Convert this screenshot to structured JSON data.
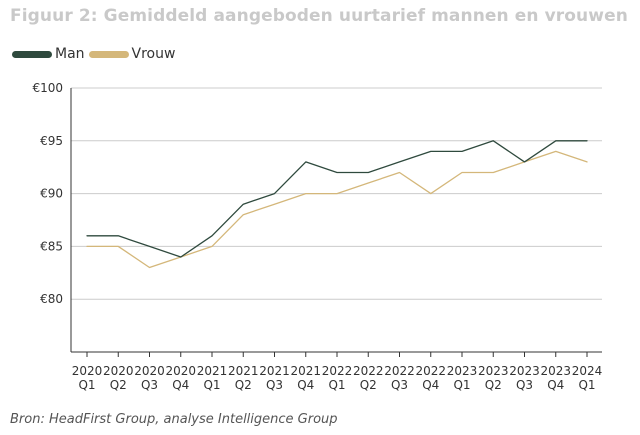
{
  "title": "Figuur 2:  Gemiddeld aangeboden uurtarief mannen en vrouwen",
  "source": "Bron: HeadFirst Group, analyse Intelligence Group",
  "colors": {
    "man": "#2f4a3e",
    "vrouw": "#d4b77a",
    "grid": "#cccccc",
    "axis": "#333333",
    "title": "#c9c9c9"
  },
  "chart_data": {
    "type": "line",
    "title": "Figuur 2:  Gemiddeld aangeboden uurtarief mannen en vrouwen",
    "xlabel": "",
    "ylabel": "",
    "ylim": [
      75,
      100
    ],
    "yticks": [
      80,
      85,
      90,
      95,
      100
    ],
    "ytick_labels": [
      "€80",
      "€85",
      "€90",
      "€95",
      "€100"
    ],
    "grid": true,
    "legend_position": "top-left",
    "categories": [
      [
        "2020",
        "Q1"
      ],
      [
        "2020",
        "Q2"
      ],
      [
        "2020",
        "Q3"
      ],
      [
        "2020",
        "Q4"
      ],
      [
        "2021",
        "Q1"
      ],
      [
        "2021",
        "Q2"
      ],
      [
        "2021",
        "Q3"
      ],
      [
        "2021",
        "Q4"
      ],
      [
        "2022",
        "Q1"
      ],
      [
        "2022",
        "Q2"
      ],
      [
        "2022",
        "Q3"
      ],
      [
        "2022",
        "Q4"
      ],
      [
        "2023",
        "Q1"
      ],
      [
        "2023",
        "Q2"
      ],
      [
        "2023",
        "Q3"
      ],
      [
        "2023",
        "Q4"
      ],
      [
        "2024",
        "Q1"
      ]
    ],
    "series": [
      {
        "name": "Man",
        "color": "#2f4a3e",
        "values": [
          86,
          86,
          85,
          84,
          86,
          89,
          90,
          93,
          92,
          92,
          93,
          94,
          94,
          95,
          93,
          95,
          95
        ]
      },
      {
        "name": "Vrouw",
        "color": "#d4b77a",
        "values": [
          85,
          85,
          83,
          84,
          85,
          88,
          89,
          90,
          90,
          91,
          92,
          90,
          92,
          92,
          93,
          94,
          93
        ]
      }
    ]
  }
}
